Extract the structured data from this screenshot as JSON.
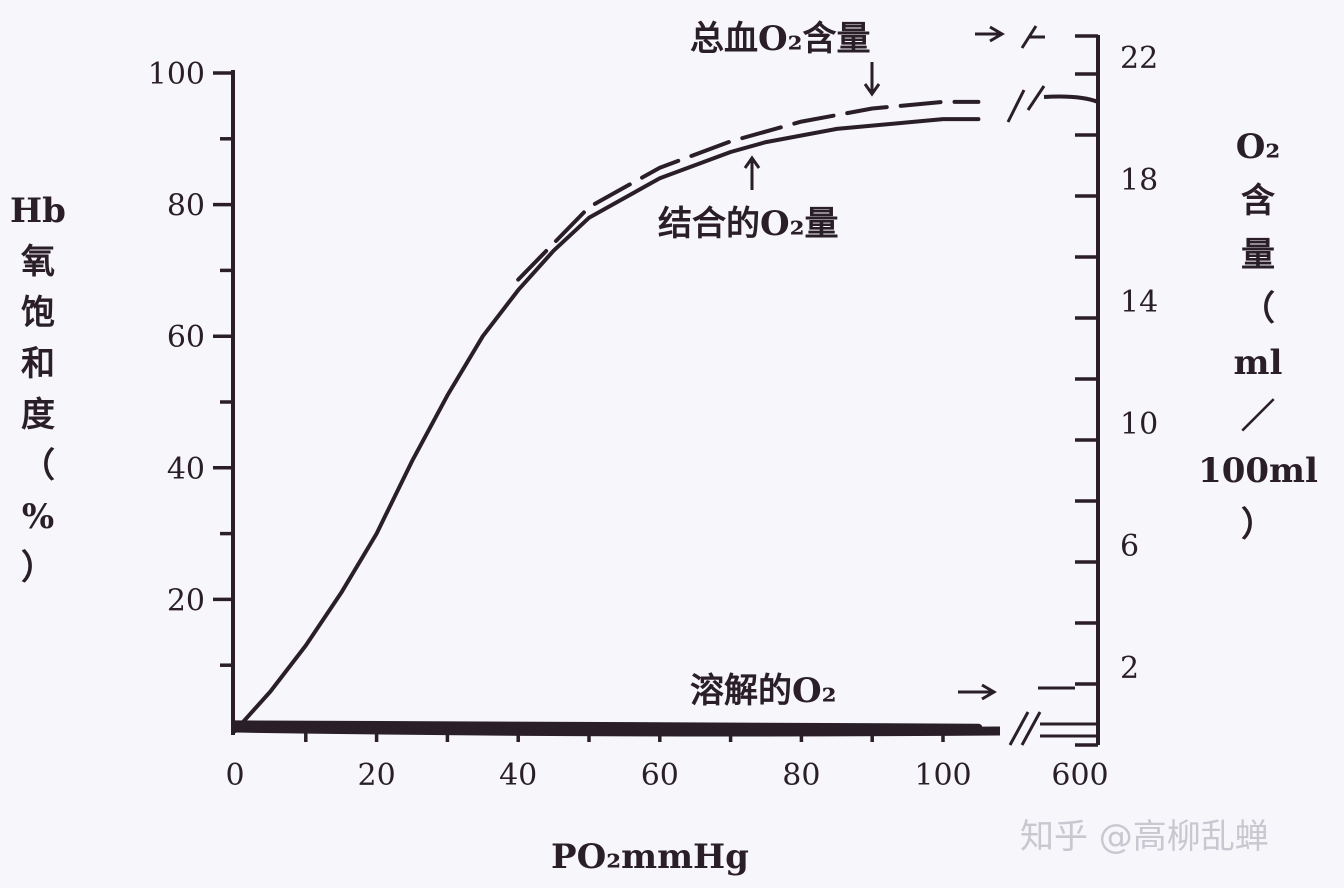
{
  "chart_data": {
    "type": "line",
    "xlabel": "PO₂mmHg",
    "ylabel_left": [
      "Hb",
      "氧",
      "饱",
      "和",
      "度",
      "（",
      "%",
      "）"
    ],
    "ylabel_right": [
      "O₂",
      "含",
      "量",
      "（",
      "ml",
      "／",
      "100ml",
      "）"
    ],
    "x_ticks": [
      "0",
      "20",
      "40",
      "60",
      "80",
      "100",
      "600"
    ],
    "y_left_ticks": [
      "20",
      "40",
      "60",
      "80",
      "100"
    ],
    "y_right_ticks": [
      "2",
      "6",
      "10",
      "14",
      "18",
      "22"
    ],
    "xlim": [
      0,
      100
    ],
    "ylim_left": [
      0,
      100
    ],
    "ylim_right": [
      0,
      23
    ],
    "axis_break": "100 → 600",
    "series": [
      {
        "name": "结合的O₂量",
        "style": "solid",
        "x": [
          0,
          5,
          10,
          15,
          20,
          25,
          30,
          35,
          40,
          45,
          50,
          55,
          60,
          65,
          70,
          75,
          80,
          85,
          90,
          95,
          100,
          105
        ],
        "y": [
          0,
          6,
          13,
          21,
          30,
          41,
          51,
          60,
          67,
          73,
          78,
          81,
          84,
          86,
          88,
          89.5,
          90.5,
          91.5,
          92,
          92.5,
          93,
          93
        ]
      },
      {
        "name": "总血O₂含量",
        "style": "dashed",
        "x": [
          40,
          50,
          60,
          70,
          80,
          90,
          100,
          105
        ],
        "y": [
          68,
          79,
          85,
          89,
          92,
          94,
          95,
          95
        ]
      },
      {
        "name": "溶解的O₂",
        "style": "solid",
        "x": [
          0,
          105
        ],
        "y": [
          1,
          0.5
        ]
      }
    ],
    "annotations": {
      "total": "总血O₂含量",
      "bound": "结合的O₂量",
      "dissolved": "溶解的O₂"
    }
  },
  "watermark": "知乎 @高柳乱蝉"
}
